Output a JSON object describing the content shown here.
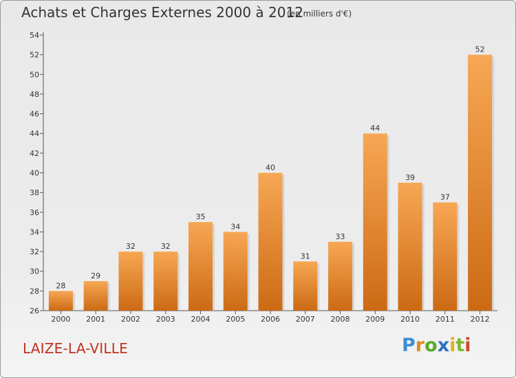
{
  "header": {
    "title": "Achats et Charges Externes 2000 à 2012",
    "subtitle": "(en milliers d'€)"
  },
  "footer": {
    "commune": "LAIZE-LA-VILLE",
    "logo": [
      "P",
      "r",
      "o",
      "x",
      "i",
      "t",
      "i"
    ]
  },
  "colors": {
    "bar_top": "#f7a754",
    "bar_bottom": "#cc6a14",
    "title": "#333333",
    "commune": "#c0301f"
  },
  "chart_data": {
    "type": "bar",
    "title": "Achats et Charges Externes 2000 à 2012",
    "subtitle": "(en milliers d'€)",
    "categories": [
      "2000",
      "2001",
      "2002",
      "2003",
      "2004",
      "2005",
      "2006",
      "2007",
      "2008",
      "2009",
      "2010",
      "2011",
      "2012"
    ],
    "values": [
      28,
      29,
      32,
      32,
      35,
      34,
      40,
      31,
      33,
      44,
      39,
      37,
      52
    ],
    "ylim": [
      26,
      54
    ],
    "yticks": [
      26,
      28,
      30,
      32,
      34,
      36,
      38,
      40,
      42,
      44,
      46,
      48,
      50,
      52,
      54
    ],
    "xlabel": "",
    "ylabel": "",
    "grid": false,
    "data_labels": true
  }
}
